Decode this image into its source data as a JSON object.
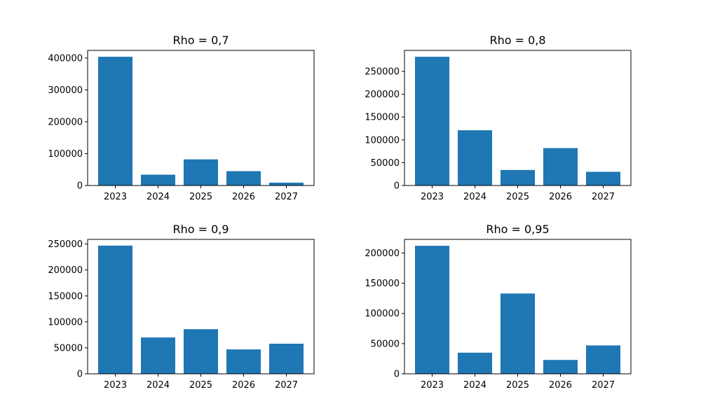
{
  "chart_data": [
    {
      "type": "bar",
      "title": "Rho = 0,7",
      "categories": [
        "2023",
        "2024",
        "2025",
        "2026",
        "2027"
      ],
      "values": [
        404000,
        34000,
        82000,
        45000,
        9000
      ],
      "ylim": [
        0,
        424000
      ],
      "yticks": [
        0,
        100000,
        200000,
        300000,
        400000
      ],
      "ytick_labels": [
        "0",
        "100000",
        "200000",
        "300000",
        "400000"
      ],
      "xlabel": "",
      "ylabel": "",
      "grid": false,
      "color": "#1f77b4"
    },
    {
      "type": "bar",
      "title": "Rho = 0,8",
      "categories": [
        "2023",
        "2024",
        "2025",
        "2026",
        "2027"
      ],
      "values": [
        282000,
        121000,
        34000,
        82000,
        30000
      ],
      "ylim": [
        0,
        296000
      ],
      "yticks": [
        0,
        50000,
        100000,
        150000,
        200000,
        250000
      ],
      "ytick_labels": [
        "0",
        "50000",
        "100000",
        "150000",
        "200000",
        "250000"
      ],
      "xlabel": "",
      "ylabel": "",
      "grid": false,
      "color": "#1f77b4"
    },
    {
      "type": "bar",
      "title": "Rho = 0,9",
      "categories": [
        "2023",
        "2024",
        "2025",
        "2026",
        "2027"
      ],
      "values": [
        247000,
        70000,
        86000,
        47000,
        58000
      ],
      "ylim": [
        0,
        259000
      ],
      "yticks": [
        0,
        50000,
        100000,
        150000,
        200000,
        250000
      ],
      "ytick_labels": [
        "0",
        "50000",
        "100000",
        "150000",
        "200000",
        "250000"
      ],
      "xlabel": "",
      "ylabel": "",
      "grid": false,
      "color": "#1f77b4"
    },
    {
      "type": "bar",
      "title": "Rho = 0,95",
      "categories": [
        "2023",
        "2024",
        "2025",
        "2026",
        "2027"
      ],
      "values": [
        212000,
        35000,
        133000,
        23000,
        47000
      ],
      "ylim": [
        0,
        222600
      ],
      "yticks": [
        0,
        50000,
        100000,
        150000,
        200000
      ],
      "ytick_labels": [
        "0",
        "50000",
        "100000",
        "150000",
        "200000"
      ],
      "xlabel": "",
      "ylabel": "",
      "grid": false,
      "color": "#1f77b4"
    }
  ]
}
